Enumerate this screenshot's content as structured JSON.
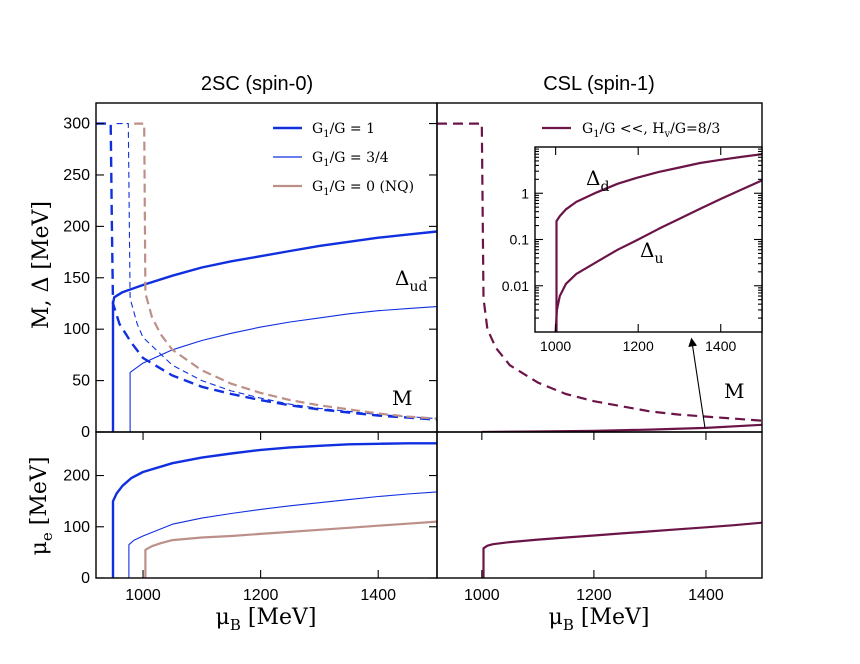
{
  "chart_data": [
    {
      "id": "top-left",
      "type": "line",
      "title": "2SC (spin-0)",
      "xlabel": "",
      "ylabel": "M, Δ [MeV]",
      "xlim": [
        920,
        1500
      ],
      "ylim": [
        0,
        320
      ],
      "xticks": [],
      "yticks": [
        0,
        50,
        100,
        150,
        200,
        250,
        300
      ],
      "legend": {
        "position": "top-right",
        "entries": [
          {
            "label": "G₁/G = 1",
            "color": "#1030e0",
            "width": 2.6
          },
          {
            "label": "G₁/G = 3/4",
            "color": "#1030e0",
            "width": 1.2
          },
          {
            "label": "G₁/G = 0 (NQ)",
            "color": "#bc9088",
            "width": 2.2
          }
        ]
      },
      "annotations": [
        {
          "text": "Δ",
          "sub": "ud",
          "x": 1390,
          "y": 140
        },
        {
          "text": "M",
          "sub": "",
          "x": 1400,
          "y": 28
        }
      ],
      "series": [
        {
          "color": "#1030e0",
          "width": 2.4,
          "dash": "",
          "points": [
            [
              949,
              0
            ],
            [
              949,
              125
            ],
            [
              951,
              131
            ],
            [
              965,
              136
            ],
            [
              1000,
              143
            ],
            [
              1050,
              152
            ],
            [
              1100,
              160
            ],
            [
              1150,
              166
            ],
            [
              1200,
              171
            ],
            [
              1250,
              176
            ],
            [
              1300,
              181
            ],
            [
              1350,
              185
            ],
            [
              1400,
              189
            ],
            [
              1450,
              192
            ],
            [
              1500,
              195
            ]
          ]
        },
        {
          "color": "#1030e0",
          "width": 2.4,
          "dash": "10,6",
          "points": [
            [
              920,
              300
            ],
            [
              945,
              300
            ],
            [
              947,
              200
            ],
            [
              949,
              125
            ],
            [
              960,
              105
            ],
            [
              980,
              87
            ],
            [
              1000,
              72
            ],
            [
              1050,
              55
            ],
            [
              1100,
              44
            ],
            [
              1150,
              37
            ],
            [
              1200,
              31
            ],
            [
              1250,
              26
            ],
            [
              1300,
              22
            ],
            [
              1350,
              19
            ],
            [
              1400,
              16
            ],
            [
              1450,
              14
            ],
            [
              1500,
              12
            ]
          ]
        },
        {
          "color": "#1030e0",
          "width": 1.1,
          "dash": "",
          "points": [
            [
              978,
              0
            ],
            [
              978,
              58
            ],
            [
              1000,
              67
            ],
            [
              1050,
              80
            ],
            [
              1100,
              89
            ],
            [
              1150,
              96
            ],
            [
              1200,
              102
            ],
            [
              1250,
              107
            ],
            [
              1300,
              111
            ],
            [
              1350,
              115
            ],
            [
              1400,
              118
            ],
            [
              1450,
              120
            ],
            [
              1500,
              122
            ]
          ]
        },
        {
          "color": "#1030e0",
          "width": 1.1,
          "dash": "6,4",
          "points": [
            [
              955,
              300
            ],
            [
              975,
              300
            ],
            [
              978,
              130
            ],
            [
              990,
              105
            ],
            [
              1000,
              92
            ],
            [
              1050,
              65
            ],
            [
              1100,
              50
            ],
            [
              1150,
              40
            ],
            [
              1200,
              33
            ],
            [
              1250,
              27
            ],
            [
              1300,
              23
            ],
            [
              1350,
              20
            ],
            [
              1400,
              17
            ],
            [
              1450,
              15
            ],
            [
              1500,
              13
            ]
          ]
        },
        {
          "color": "#bc9088",
          "width": 2.2,
          "dash": "9,5",
          "points": [
            [
              985,
              300
            ],
            [
              1002,
              300
            ],
            [
              1004,
              135
            ],
            [
              1015,
              112
            ],
            [
              1030,
              95
            ],
            [
              1050,
              80
            ],
            [
              1100,
              60
            ],
            [
              1150,
              47
            ],
            [
              1200,
              38
            ],
            [
              1250,
              31
            ],
            [
              1300,
              26
            ],
            [
              1350,
              22
            ],
            [
              1400,
              18
            ],
            [
              1450,
              15
            ],
            [
              1500,
              13
            ]
          ]
        }
      ]
    },
    {
      "id": "top-right",
      "type": "line",
      "title": "CSL (spin-1)",
      "xlabel": "",
      "ylabel": "",
      "xlim": [
        920,
        1500
      ],
      "ylim": [
        0,
        320
      ],
      "xticks": [],
      "yticks": [],
      "legend": {
        "position": "top-right",
        "entries": [
          {
            "label": "G₁/G <<, Hᵥ/G=8/3",
            "color": "#6b1448",
            "width": 2.2
          }
        ]
      },
      "annotations": [
        {
          "text": "M",
          "sub": "",
          "x": 1460,
          "y": 34
        }
      ],
      "series": [
        {
          "color": "#6b1448",
          "width": 2.2,
          "dash": "10,6",
          "points": [
            [
              920,
              300
            ],
            [
              1000,
              300
            ],
            [
              1003,
              130
            ],
            [
              1010,
              100
            ],
            [
              1025,
              82
            ],
            [
              1050,
              65
            ],
            [
              1100,
              48
            ],
            [
              1150,
              37
            ],
            [
              1200,
              30
            ],
            [
              1250,
              25
            ],
            [
              1300,
              20
            ],
            [
              1350,
              17
            ],
            [
              1400,
              15
            ],
            [
              1450,
              13
            ],
            [
              1500,
              11
            ]
          ]
        },
        {
          "color": "#6b1448",
          "width": 2.2,
          "dash": "",
          "points": [
            [
              1000,
              0
            ],
            [
              1100,
              0.5
            ],
            [
              1200,
              1.2
            ],
            [
              1300,
              2.3
            ],
            [
              1400,
              4
            ],
            [
              1500,
              7
            ]
          ]
        }
      ]
    },
    {
      "id": "inset",
      "type": "line",
      "title": "",
      "xlabel": "",
      "ylabel": "",
      "xscale": "linear",
      "yscale": "log",
      "xlim": [
        950,
        1500
      ],
      "ylim": [
        0.001,
        10
      ],
      "xticks": [
        1000,
        1200,
        1400
      ],
      "yticks": [
        0.01,
        0.1,
        1
      ],
      "ytick_labels": [
        "0.01",
        "0.1",
        "1"
      ],
      "annotations": [
        {
          "text": "Δ",
          "sub": "d",
          "x": 1040,
          "y": 1.5
        },
        {
          "text": "Δ",
          "sub": "u",
          "x": 1170,
          "y": 0.03
        }
      ],
      "series": [
        {
          "name": "Δd",
          "color": "#6b1448",
          "width": 2.2,
          "dash": "",
          "points": [
            [
              1002,
              0.001
            ],
            [
              1002,
              0.25
            ],
            [
              1010,
              0.32
            ],
            [
              1025,
              0.45
            ],
            [
              1050,
              0.65
            ],
            [
              1100,
              1.05
            ],
            [
              1150,
              1.6
            ],
            [
              1200,
              2.2
            ],
            [
              1250,
              2.9
            ],
            [
              1300,
              3.6
            ],
            [
              1350,
              4.5
            ],
            [
              1400,
              5.3
            ],
            [
              1450,
              6.1
            ],
            [
              1500,
              7
            ]
          ]
        },
        {
          "name": "Δu",
          "color": "#6b1448",
          "width": 2.2,
          "dash": "",
          "points": [
            [
              1000,
              0.001
            ],
            [
              1003,
              0.003
            ],
            [
              1010,
              0.006
            ],
            [
              1025,
              0.011
            ],
            [
              1050,
              0.018
            ],
            [
              1100,
              0.033
            ],
            [
              1150,
              0.06
            ],
            [
              1200,
              0.1
            ],
            [
              1250,
              0.17
            ],
            [
              1300,
              0.28
            ],
            [
              1350,
              0.46
            ],
            [
              1400,
              0.75
            ],
            [
              1450,
              1.2
            ],
            [
              1500,
              1.9
            ]
          ]
        }
      ],
      "arrow": {
        "from": [
          1400,
          8
        ],
        "to": [
          1385,
          0.0016
        ]
      }
    },
    {
      "id": "bottom-left",
      "type": "line",
      "title": "",
      "xlabel": "μ_B [MeV]",
      "ylabel": "μ_e [MeV]",
      "xlim": [
        920,
        1500
      ],
      "ylim": [
        0,
        285
      ],
      "xticks": [
        1000,
        1200,
        1400
      ],
      "yticks": [
        0,
        100,
        200
      ],
      "series": [
        {
          "color": "#1030e0",
          "width": 2.4,
          "dash": "",
          "points": [
            [
              949,
              0
            ],
            [
              949,
              150
            ],
            [
              955,
              165
            ],
            [
              965,
              180
            ],
            [
              980,
              195
            ],
            [
              1000,
              207
            ],
            [
              1050,
              224
            ],
            [
              1100,
              235
            ],
            [
              1150,
              243
            ],
            [
              1200,
              250
            ],
            [
              1250,
              255
            ],
            [
              1300,
              258
            ],
            [
              1350,
              261
            ],
            [
              1400,
              262
            ],
            [
              1450,
              263
            ],
            [
              1500,
              263
            ]
          ]
        },
        {
          "color": "#1030e0",
          "width": 1.1,
          "dash": "",
          "points": [
            [
              976,
              0
            ],
            [
              976,
              65
            ],
            [
              985,
              74
            ],
            [
              1000,
              82
            ],
            [
              1050,
              105
            ],
            [
              1100,
              117
            ],
            [
              1150,
              126
            ],
            [
              1200,
              134
            ],
            [
              1250,
              141
            ],
            [
              1300,
              147
            ],
            [
              1350,
              153
            ],
            [
              1400,
              159
            ],
            [
              1450,
              164
            ],
            [
              1500,
              168
            ]
          ]
        },
        {
          "color": "#bc9088",
          "width": 2.2,
          "dash": "",
          "points": [
            [
              1004,
              0
            ],
            [
              1004,
              55
            ],
            [
              1015,
              62
            ],
            [
              1030,
              68
            ],
            [
              1050,
              74
            ],
            [
              1100,
              79
            ],
            [
              1150,
              82
            ],
            [
              1200,
              86
            ],
            [
              1250,
              90
            ],
            [
              1300,
              94
            ],
            [
              1350,
              98
            ],
            [
              1400,
              102
            ],
            [
              1450,
              106
            ],
            [
              1500,
              110
            ]
          ]
        }
      ]
    },
    {
      "id": "bottom-right",
      "type": "line",
      "title": "",
      "xlabel": "μ_B [MeV]",
      "ylabel": "",
      "xlim": [
        920,
        1500
      ],
      "ylim": [
        0,
        285
      ],
      "xticks": [
        1000,
        1200,
        1400
      ],
      "yticks": [],
      "series": [
        {
          "color": "#6b1448",
          "width": 2.2,
          "dash": "",
          "points": [
            [
              1003,
              0
            ],
            [
              1003,
              58
            ],
            [
              1010,
              63
            ],
            [
              1020,
              66
            ],
            [
              1050,
              70
            ],
            [
              1100,
              75
            ],
            [
              1150,
              79
            ],
            [
              1200,
              83
            ],
            [
              1250,
              87
            ],
            [
              1300,
              91
            ],
            [
              1350,
              95
            ],
            [
              1400,
              99
            ],
            [
              1450,
              103
            ],
            [
              1500,
              108
            ]
          ]
        }
      ]
    }
  ]
}
